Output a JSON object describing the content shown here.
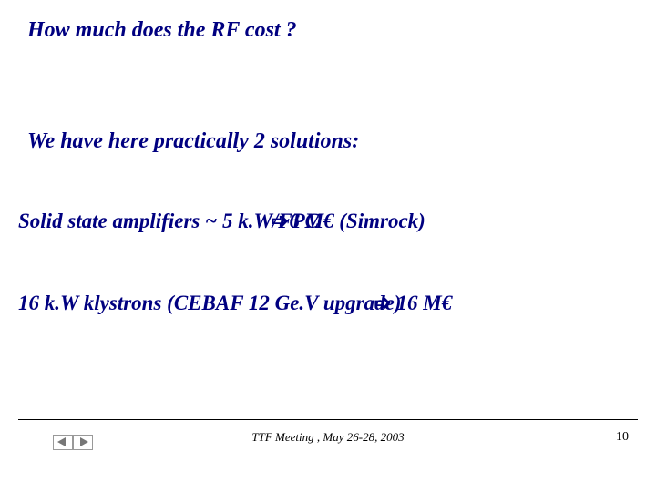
{
  "title": {
    "text": "How much does the RF cost ?",
    "color": "#000080",
    "fontsize": 24
  },
  "line1": {
    "text": "We have here practically 2 solutions:",
    "color": "#000080",
    "fontsize": 24
  },
  "line2": {
    "prefix": "Solid state amplifiers ~  5 k.W/FPC",
    "suffix": "6 M€ (Simrock)",
    "color": "#000080",
    "fontsize": 23
  },
  "line3": {
    "prefix": "16 k.W klystrons (CEBAF 12 Ge.V upgrade)",
    "suffix": " 16 M€",
    "color": "#000080",
    "fontsize": 23
  },
  "footer": {
    "text": "TTF Meeting , May 26-28, 2003",
    "color": "#000000",
    "fontsize": 13
  },
  "page": {
    "number": "10",
    "color": "#000000",
    "fontsize": 14
  },
  "arrow_glyph": "➩"
}
